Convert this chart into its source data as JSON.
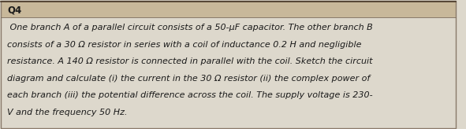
{
  "title": "Q4",
  "body_lines": [
    " One branch A of a parallel circuit consists of a 50-μF capacitor. The other branch B",
    "consists of a 30 Ω resistor in series with a coil of inductance 0.2 H and negligible",
    "resistance. A 140 Ω resistor is connected in parallel with the coil. Sketch the circuit",
    "diagram and calculate (i) the current in the 30 Ω resistor (ii) the complex power of",
    "each branch (iii) the potential difference across the coil. The supply voltage is 230-",
    "V and the frequency 50 Hz."
  ],
  "bg_color": "#ddd8cc",
  "title_bg_color": "#c8b89a",
  "text_color": "#1a1a1a",
  "font_size_title": 8.5,
  "font_size_body": 8.0,
  "fig_width": 5.91,
  "fig_height": 1.64,
  "line_color": "#7a6a5a",
  "border_color": "#8a7a6a",
  "top_line_color": "#4a3a2a"
}
